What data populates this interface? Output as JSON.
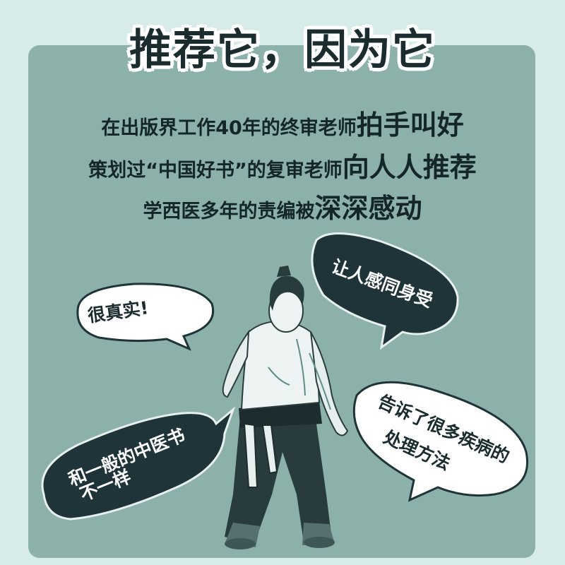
{
  "title": "推荐它，因为它",
  "lines": [
    {
      "small": "在出版界工作40年的终审老师",
      "big": "拍手叫好"
    },
    {
      "small": "策划过“中国好书”的复审老师",
      "big": "向人人推荐"
    },
    {
      "small": "学西医多年的责编被",
      "big": "深深感动"
    }
  ],
  "bubbles": {
    "very_real": "很真实!",
    "empathy": "让人感同身受",
    "different_1": "和一般的中医书",
    "different_2": "不一样",
    "methods_1": "告诉了很多疾病的",
    "methods_2": "处理方法"
  },
  "colors": {
    "background": "#d7ebe9",
    "panel": "#8cb1ab",
    "dark_bubble": "#1e3438",
    "light_bubble": "#ffffff",
    "text": "#14262a"
  }
}
